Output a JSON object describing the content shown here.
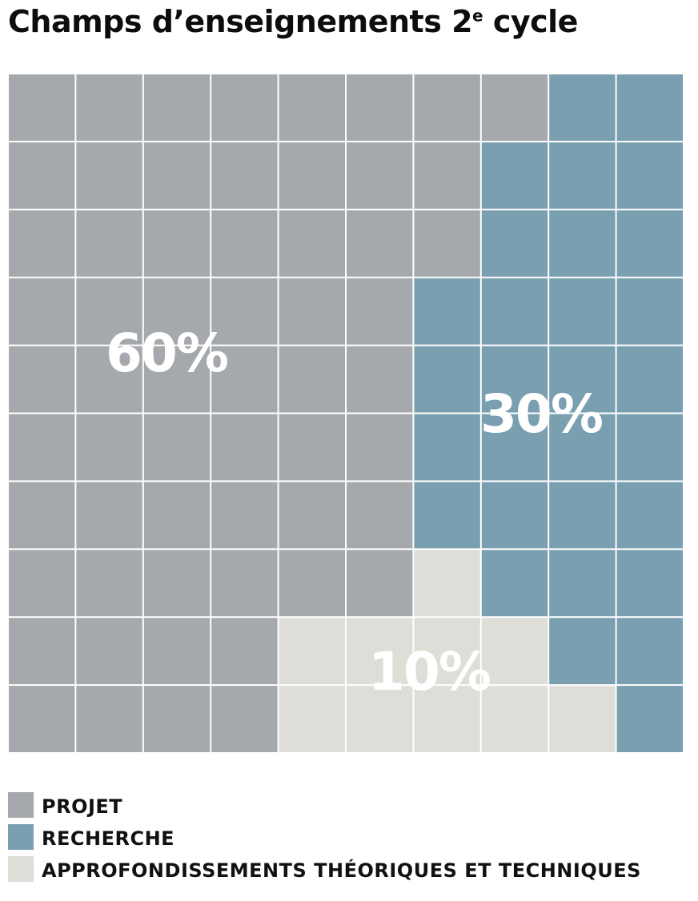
{
  "title": {
    "main": "Champs d’enseignements 2",
    "superscript": "e",
    "suffix": " cycle"
  },
  "chart_data": {
    "type": "waffle",
    "rows": 10,
    "columns": 10,
    "categories": [
      {
        "key": "projet",
        "name": "PROJET",
        "value": 60,
        "label": "60%",
        "color": "#a5a9ae"
      },
      {
        "key": "recherche",
        "name": "RECHERCHE",
        "value": 30,
        "label": "30%",
        "color": "#799fb0"
      },
      {
        "key": "approfondissements",
        "name": "APPROFONDISSEMENTS THÉORIQUES ET TECHNIQUES",
        "value": 10,
        "label": "10%",
        "color": "#dfddd7"
      }
    ],
    "grid": [
      "PPPPPPPPRR",
      "PPPPPPPRRR",
      "PPPPPPPRRR",
      "PPPPPPRRRR",
      "PPPPPPRRRR",
      "PPPPPPRRRR",
      "PPPPPPRRRR",
      "PPPPPPARRR",
      "PPPPAAAARR",
      "PPPPAAAAAR"
    ],
    "grid_legend": {
      "P": "projet",
      "R": "recherche",
      "A": "approfondissements"
    },
    "legend": {
      "position": "bottom-left"
    }
  }
}
